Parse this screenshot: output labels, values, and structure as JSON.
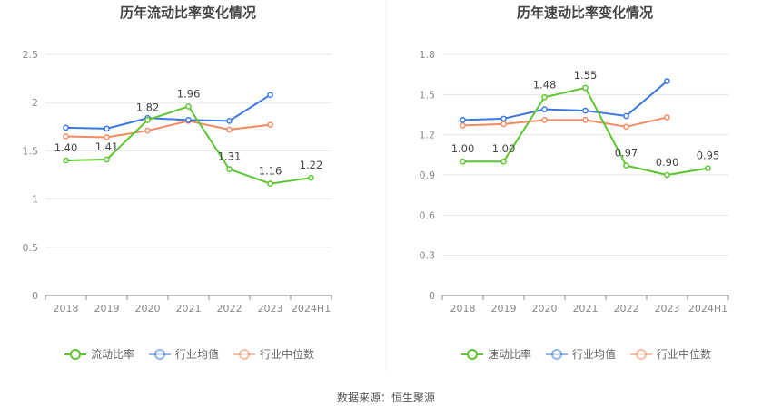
{
  "source_text": "数据来源：恒生聚源",
  "chart_data": [
    {
      "type": "line",
      "title": "历年流动比率变化情况",
      "categories": [
        "2018",
        "2019",
        "2020",
        "2021",
        "2022",
        "2023",
        "2024H1"
      ],
      "ylim": [
        0,
        2.5
      ],
      "yticks": [
        "0",
        "0.5",
        "1",
        "1.5",
        "2",
        "2.5"
      ],
      "grid": true,
      "legend_position": "bottom",
      "series": [
        {
          "name": "流动比率",
          "color": "#5cc630",
          "values": [
            1.4,
            1.41,
            1.82,
            1.96,
            1.31,
            1.16,
            1.22
          ],
          "labels": [
            "1.40",
            "1.41",
            "1.82",
            "1.96",
            "1.31",
            "1.16",
            "1.22"
          ]
        },
        {
          "name": "行业均值",
          "color": "#3b77e0",
          "values": [
            1.74,
            1.73,
            1.84,
            1.82,
            1.81,
            2.08,
            null
          ]
        },
        {
          "name": "行业中位数",
          "color": "#f58b62",
          "values": [
            1.65,
            1.64,
            1.71,
            1.81,
            1.72,
            1.77,
            null
          ]
        }
      ]
    },
    {
      "type": "line",
      "title": "历年速动比率变化情况",
      "categories": [
        "2018",
        "2019",
        "2020",
        "2021",
        "2022",
        "2023",
        "2024H1"
      ],
      "ylim": [
        0,
        1.8
      ],
      "yticks": [
        "0",
        "0.3",
        "0.6",
        "0.9",
        "1.2",
        "1.5",
        "1.8"
      ],
      "grid": true,
      "legend_position": "bottom",
      "series": [
        {
          "name": "速动比率",
          "color": "#5cc630",
          "values": [
            1.0,
            1.0,
            1.48,
            1.55,
            0.97,
            0.9,
            0.95
          ],
          "labels": [
            "1.00",
            "1.00",
            "1.48",
            "1.55",
            "0.97",
            "0.90",
            "0.95"
          ]
        },
        {
          "name": "行业均值",
          "color": "#3b77e0",
          "values": [
            1.31,
            1.32,
            1.39,
            1.38,
            1.34,
            1.6,
            null
          ]
        },
        {
          "name": "行业中位数",
          "color": "#f58b62",
          "values": [
            1.27,
            1.28,
            1.31,
            1.31,
            1.26,
            1.33,
            null
          ]
        }
      ]
    }
  ]
}
